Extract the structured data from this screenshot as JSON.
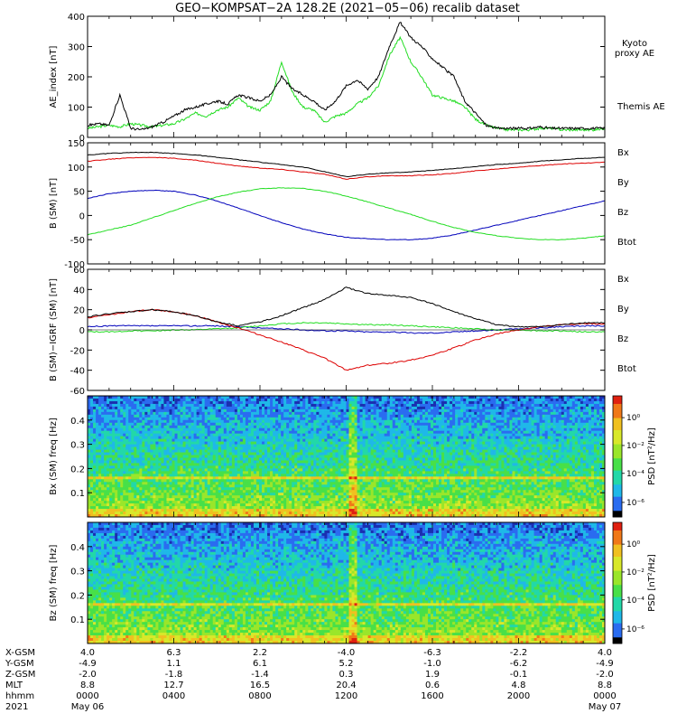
{
  "title": "GEO−KOMPSAT−2A 128.2E (2021−05−06) recalib dataset",
  "colors": {
    "black": "#000000",
    "green": "#22dd22",
    "red": "#dd0000",
    "blue": "#0000bb"
  },
  "chart_data": [
    {
      "type": "line",
      "ylabel": "AE_index [nT]",
      "ylim": [
        0,
        400
      ],
      "yticks": [
        "0",
        "100",
        "200",
        "300",
        "400"
      ],
      "x_hours": [
        0,
        0.5,
        1,
        1.5,
        2,
        2.5,
        3,
        3.5,
        4,
        4.5,
        5,
        5.5,
        6,
        6.5,
        7,
        7.5,
        8,
        8.5,
        9,
        9.5,
        10,
        10.5,
        11,
        11.5,
        12,
        12.5,
        13,
        13.5,
        14,
        14.5,
        15,
        15.5,
        16,
        16.5,
        17,
        17.5,
        18,
        18.5,
        19,
        19.5,
        20,
        20.5,
        21,
        21.5,
        22,
        22.5,
        23,
        23.5,
        24
      ],
      "series": [
        {
          "name": "Kyoto proxy AE",
          "color": "green",
          "values": [
            30,
            35,
            40,
            35,
            45,
            40,
            35,
            40,
            45,
            60,
            80,
            70,
            90,
            100,
            130,
            100,
            90,
            120,
            250,
            150,
            100,
            90,
            50,
            70,
            80,
            110,
            130,
            170,
            270,
            330,
            250,
            200,
            140,
            130,
            120,
            100,
            60,
            40,
            30,
            25,
            25,
            25,
            30,
            30,
            25,
            25,
            25,
            25,
            30
          ]
        },
        {
          "name": "Themis AE",
          "color": "black",
          "values": [
            40,
            45,
            40,
            140,
            30,
            25,
            35,
            50,
            70,
            90,
            100,
            110,
            120,
            110,
            140,
            130,
            120,
            140,
            200,
            160,
            140,
            120,
            90,
            120,
            170,
            190,
            160,
            200,
            300,
            380,
            330,
            300,
            260,
            230,
            200,
            120,
            80,
            40,
            30,
            30,
            30,
            30,
            35,
            30,
            30,
            30,
            30,
            30,
            30
          ]
        }
      ]
    },
    {
      "type": "line",
      "ylabel": "B (SM) [nT]",
      "ylim": [
        -100,
        150
      ],
      "yticks": [
        "-100",
        "-50",
        "0",
        "50",
        "100",
        "150"
      ],
      "x_hours": [
        0,
        1,
        2,
        3,
        4,
        5,
        6,
        7,
        8,
        9,
        10,
        11,
        12,
        13,
        14,
        15,
        16,
        17,
        18,
        19,
        20,
        21,
        22,
        23,
        24
      ],
      "series": [
        {
          "name": "Bx",
          "color": "blue",
          "values": [
            35,
            45,
            50,
            52,
            50,
            42,
            30,
            15,
            0,
            -15,
            -28,
            -38,
            -45,
            -48,
            -50,
            -50,
            -47,
            -40,
            -30,
            -20,
            -10,
            0,
            10,
            20,
            30
          ]
        },
        {
          "name": "By",
          "color": "green",
          "values": [
            -40,
            -30,
            -20,
            -5,
            10,
            25,
            38,
            48,
            55,
            57,
            56,
            50,
            40,
            28,
            15,
            2,
            -12,
            -25,
            -35,
            -42,
            -47,
            -50,
            -50,
            -47,
            -42
          ]
        },
        {
          "name": "Bz",
          "color": "red",
          "values": [
            112,
            116,
            119,
            120,
            118,
            114,
            108,
            102,
            98,
            95,
            90,
            85,
            75,
            80,
            82,
            82,
            84,
            87,
            92,
            96,
            100,
            103,
            106,
            108,
            110
          ]
        },
        {
          "name": "Btot",
          "color": "black",
          "values": [
            125,
            128,
            130,
            130,
            128,
            125,
            120,
            115,
            110,
            105,
            100,
            90,
            80,
            85,
            88,
            90,
            93,
            97,
            101,
            105,
            108,
            112,
            115,
            118,
            120
          ]
        }
      ],
      "legend": [
        "Bx",
        "By",
        "Bz",
        "Btot"
      ]
    },
    {
      "type": "line",
      "ylabel": "B (SM)−IGRF (SM) [nT]",
      "ylim": [
        -60,
        60
      ],
      "yticks": [
        "-60",
        "-40",
        "-20",
        "0",
        "20",
        "40",
        "60"
      ],
      "x_hours": [
        0,
        1,
        2,
        3,
        4,
        5,
        6,
        7,
        8,
        9,
        10,
        11,
        12,
        13,
        14,
        15,
        16,
        17,
        18,
        19,
        20,
        21,
        22,
        23,
        24
      ],
      "series": [
        {
          "name": "Bx",
          "color": "blue",
          "values": [
            3,
            4,
            4,
            4,
            4,
            4,
            4,
            3,
            2,
            1,
            0,
            -1,
            -1,
            -2,
            -2,
            -3,
            -3,
            -2,
            -1,
            0,
            1,
            2,
            3,
            4,
            4
          ]
        },
        {
          "name": "By",
          "color": "green",
          "values": [
            -2,
            -2,
            -1,
            -1,
            0,
            0,
            1,
            2,
            4,
            6,
            7,
            7,
            6,
            5,
            5,
            4,
            3,
            2,
            1,
            0,
            0,
            -1,
            -1,
            -2,
            -2
          ]
        },
        {
          "name": "Bz",
          "color": "red",
          "values": [
            12,
            15,
            18,
            20,
            18,
            14,
            8,
            2,
            -5,
            -12,
            -20,
            -28,
            -40,
            -35,
            -33,
            -30,
            -25,
            -18,
            -10,
            -4,
            0,
            3,
            5,
            6,
            6
          ]
        },
        {
          "name": "Btot",
          "color": "black",
          "values": [
            13,
            16,
            18,
            20,
            18,
            14,
            8,
            4,
            8,
            14,
            22,
            30,
            42,
            36,
            34,
            32,
            26,
            18,
            11,
            5,
            3,
            3,
            5,
            7,
            7
          ]
        }
      ],
      "legend": [
        "Bx",
        "By",
        "Bz",
        "Btot"
      ]
    },
    {
      "type": "heatmap",
      "ylabel": "Bx (SM) freq [Hz]",
      "ylim": [
        0,
        0.5
      ],
      "yticks": [
        "0.1",
        "0.2",
        "0.3",
        "0.4"
      ],
      "colorbar_label": "PSD [nT²/Hz]",
      "colorbar_ticks": [
        "10⁰",
        "10⁻²",
        "10⁻⁴",
        "10⁻⁶"
      ],
      "features": {
        "spectral_line_hz": 0.166,
        "broadband_hour": 12.3
      }
    },
    {
      "type": "heatmap",
      "ylabel": "Bz (SM) freq [Hz]",
      "ylim": [
        0,
        0.5
      ],
      "yticks": [
        "0.1",
        "0.2",
        "0.3",
        "0.4"
      ],
      "colorbar_label": "PSD [nT²/Hz]",
      "colorbar_ticks": [
        "10⁰",
        "10⁻²",
        "10⁻⁴",
        "10⁻⁶"
      ],
      "features": {
        "spectral_line_hz": 0.166,
        "broadband_hour": 12.3
      }
    }
  ],
  "xaxis": {
    "row_labels": [
      "X-GSM",
      "Y-GSM",
      "Z-GSM",
      "MLT",
      "hhmm",
      "2021"
    ],
    "columns": [
      [
        "4.0",
        "-4.9",
        "-2.0",
        "8.8",
        "0000",
        "May 06"
      ],
      [
        "6.3",
        "1.1",
        "-1.8",
        "12.7",
        "0400",
        ""
      ],
      [
        "2.2",
        "6.1",
        "-1.4",
        "16.5",
        "0800",
        ""
      ],
      [
        "-4.0",
        "5.2",
        "0.3",
        "20.4",
        "1200",
        ""
      ],
      [
        "-6.3",
        "-1.0",
        "1.9",
        "0.6",
        "1600",
        ""
      ],
      [
        "-2.2",
        "-6.2",
        "-0.1",
        "4.8",
        "2000",
        ""
      ],
      [
        "4.0",
        "-4.9",
        "-2.0",
        "8.8",
        "0000",
        "May 07"
      ]
    ]
  },
  "panel1_legend": [
    {
      "text": "Kyoto",
      "color": "green"
    },
    {
      "text": "proxy AE",
      "color": "green"
    },
    {
      "text": "Themis AE",
      "color": "black"
    }
  ]
}
